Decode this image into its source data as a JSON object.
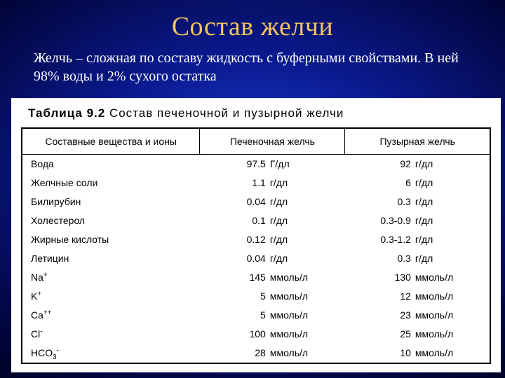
{
  "title": "Состав желчи",
  "subtitle": "Желчь – сложная по составу жидкость с буферными свойствами. В ней 98% воды и 2% сухого остатка",
  "table": {
    "caption_prefix": "Таблица  9.2",
    "caption_text": "  Состав  печеночной  и  пузырной  желчи",
    "columns": [
      "Составные вещества и ионы",
      "Печеночная желчь",
      "Пузырная желчь"
    ],
    "col_widths": [
      "38%",
      "31%",
      "31%"
    ],
    "rows": [
      {
        "name": "Вода",
        "h_num": "97.5",
        "h_unit": "Г/дл",
        "c_num": "92",
        "c_unit": "г/дл"
      },
      {
        "name": "Желчные соли",
        "h_num": "1.1",
        "h_unit": "г/дл",
        "c_num": "6",
        "c_unit": "г/дл"
      },
      {
        "name": "Билирубин",
        "h_num": "0.04",
        "h_unit": "г/дл",
        "c_num": "0.3",
        "c_unit": "г/дл"
      },
      {
        "name": "Холестерол",
        "h_num": "0.1",
        "h_unit": "г/дл",
        "c_num": "0.3-0.9",
        "c_unit": "г/дл"
      },
      {
        "name": "Жирные кислоты",
        "h_num": "0.12",
        "h_unit": "г/дл",
        "c_num": "0.3-1.2",
        "c_unit": "г/дл"
      },
      {
        "name": "Летицин",
        "h_num": "0.04",
        "h_unit": "г/дл",
        "c_num": "0.3",
        "c_unit": "г/дл"
      },
      {
        "name_html": "Na<sup>+</sup>",
        "h_num": "145",
        "h_unit": "ммоль/л",
        "c_num": "130",
        "c_unit": "ммоль/л"
      },
      {
        "name_html": "K<sup>+</sup>",
        "h_num": "5",
        "h_unit": "ммоль/л",
        "c_num": "12",
        "c_unit": "ммоль/л"
      },
      {
        "name_html": "Ca<sup>++</sup>",
        "h_num": "5",
        "h_unit": "ммоль/л",
        "c_num": "23",
        "c_unit": "ммоль/л"
      },
      {
        "name_html": "Cl<sup>-</sup>",
        "h_num": "100",
        "h_unit": "ммоль/л",
        "c_num": "25",
        "c_unit": "ммоль/л"
      },
      {
        "name_html": "HCO<sub>3</sub><sup>-</sup>",
        "h_num": "28",
        "h_unit": "ммоль/л",
        "c_num": "10",
        "c_unit": "ммоль/л"
      }
    ]
  },
  "colors": {
    "title": "#f2c55c",
    "body_text": "#ffffff",
    "table_bg": "#ffffff",
    "table_text": "#000000",
    "table_border": "#000000"
  }
}
